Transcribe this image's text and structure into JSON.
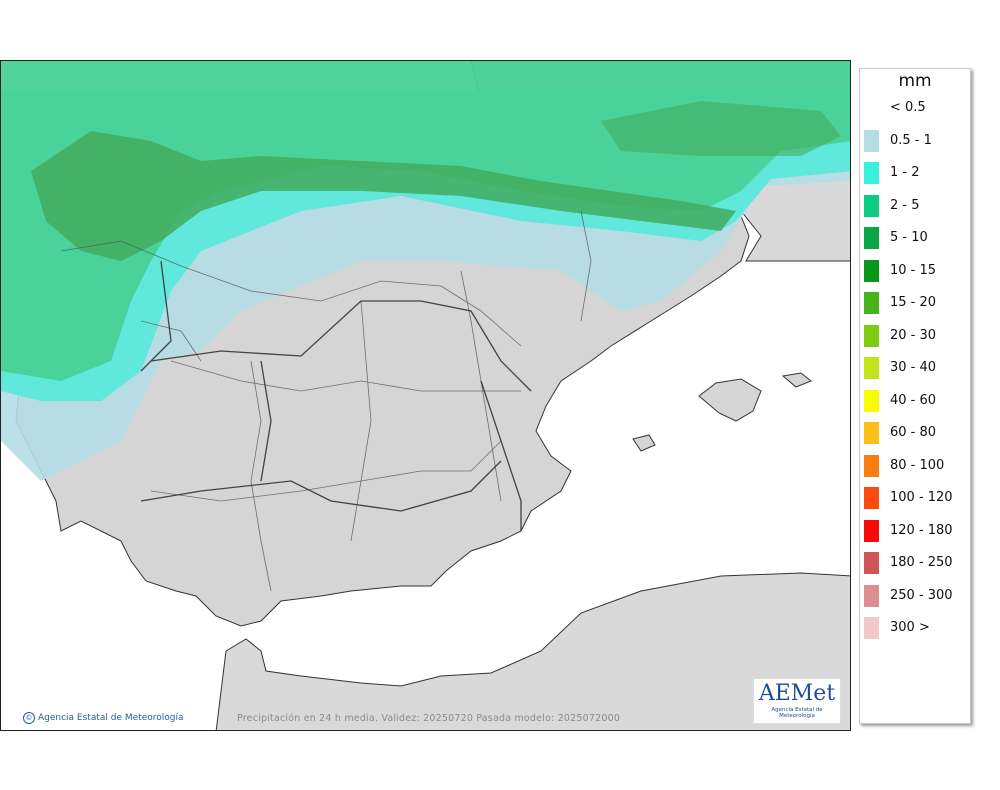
{
  "map": {
    "footer_text": "Precipitación en 24 h media. Validez: 20250720 Pasada modelo: 2025072000",
    "credit_text": "Agencia Estatal de Meteorología",
    "logo_text": "AEMet",
    "logo_subtext": "Agencia Estatal de Meteorología",
    "colors": {
      "sea": "#ffffff",
      "land": "#d8d8d8",
      "pale": "#b4dde4",
      "cyan": "#5ce8dc",
      "green": "#48d296",
      "dark": "#42ab5e"
    }
  },
  "legend": {
    "unit": "mm",
    "items": [
      {
        "label": "< 0.5",
        "color": "#ffffff"
      },
      {
        "label": "0.5 - 1",
        "color": "#b4dde4"
      },
      {
        "label": "1 - 2",
        "color": "#38f0dc"
      },
      {
        "label": "2 - 5",
        "color": "#0bcc82"
      },
      {
        "label": "5 - 10",
        "color": "#0ba746"
      },
      {
        "label": "10 - 15",
        "color": "#08961a"
      },
      {
        "label": "15 - 20",
        "color": "#47b31a"
      },
      {
        "label": "20 - 30",
        "color": "#7ecb10"
      },
      {
        "label": "30 - 40",
        "color": "#c4e31a"
      },
      {
        "label": "40 - 60",
        "color": "#fafa00"
      },
      {
        "label": "60 - 80",
        "color": "#fbbf18"
      },
      {
        "label": "80 - 100",
        "color": "#fb7d0e"
      },
      {
        "label": "100 - 120",
        "color": "#fb4a10"
      },
      {
        "label": "120 - 180",
        "color": "#f60a0a"
      },
      {
        "label": "180 - 250",
        "color": "#cf5656"
      },
      {
        "label": "250 - 300",
        "color": "#dd8f8f"
      },
      {
        "label": "300 >",
        "color": "#f0c8c8"
      }
    ]
  }
}
